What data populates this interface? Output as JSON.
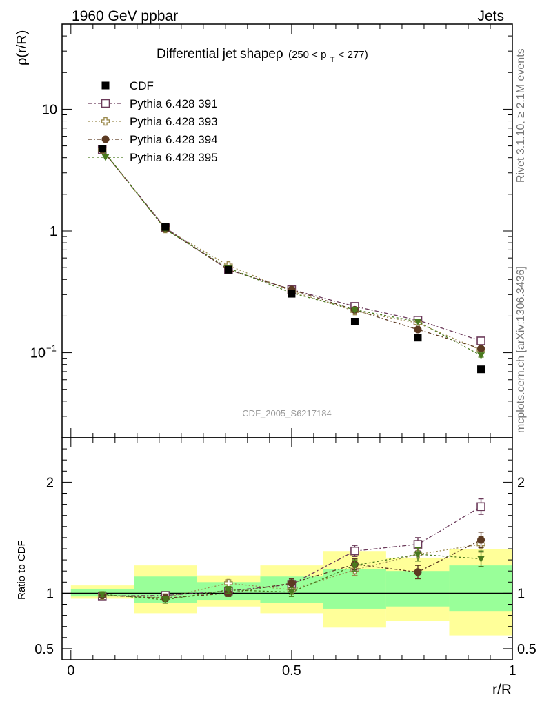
{
  "header": {
    "left": "1960 GeV ppbar",
    "right": "Jets"
  },
  "side": {
    "rivet": "Rivet 3.1.10, ≥ 2.1M events",
    "mcplots": "mcplots.cern.ch [arXiv:1306.3436]"
  },
  "chart_data": [
    {
      "type": "scatter",
      "title_main": "Differential jet shapeρ",
      "title_sub": "(250 < p",
      "title_sub_idx": "T",
      "title_sub_end": " < 277)",
      "ylabel": "ρ(r/R)",
      "yscale": "log",
      "ylim": [
        0.02,
        50
      ],
      "xlim": [
        -0.02,
        1.0
      ],
      "yticks": [
        {
          "v": 10,
          "label": "10"
        },
        {
          "v": 1,
          "label": "1"
        },
        {
          "v": 0.1,
          "label": "10",
          "sup": "−1"
        }
      ],
      "watermark": "CDF_2005_S6217184",
      "legend_position": "top-left",
      "x": [
        0.071,
        0.214,
        0.357,
        0.5,
        0.643,
        0.786,
        0.929
      ],
      "series": [
        {
          "name": "CDF",
          "marker": "square-filled",
          "color": "#000000",
          "values": [
            4.75,
            1.08,
            0.48,
            0.305,
            0.18,
            0.133,
            0.073
          ],
          "err": [
            0.1,
            0.02,
            0.01,
            0.006,
            0.004,
            0.003,
            0.002
          ]
        },
        {
          "name": "Pythia 6.428 391",
          "marker": "square-open",
          "color": "#6b3a5a",
          "dash": "6,3,2,3",
          "values": [
            4.65,
            1.06,
            0.48,
            0.33,
            0.24,
            0.185,
            0.125
          ],
          "err": [
            0.08,
            0.02,
            0.01,
            0.006,
            0.005,
            0.004,
            0.003
          ]
        },
        {
          "name": "Pythia 6.428 393",
          "marker": "cross-open",
          "color": "#9b8a4e",
          "dash": "2,3",
          "values": [
            4.65,
            1.04,
            0.52,
            0.32,
            0.22,
            0.175,
            0.105
          ],
          "err": [
            0.08,
            0.02,
            0.01,
            0.006,
            0.005,
            0.004,
            0.003
          ]
        },
        {
          "name": "Pythia 6.428 394",
          "marker": "circle-filled",
          "color": "#5c3a22",
          "dash": "5,3,2,3",
          "values": [
            4.65,
            1.04,
            0.48,
            0.33,
            0.225,
            0.155,
            0.108
          ],
          "err": [
            0.08,
            0.02,
            0.01,
            0.006,
            0.005,
            0.004,
            0.003
          ]
        },
        {
          "name": "Pythia 6.428 395",
          "marker": "triangle-down-filled",
          "color": "#4a7a1e",
          "dash": "3,3",
          "values": [
            4.7,
            1.03,
            0.495,
            0.31,
            0.225,
            0.18,
            0.095
          ],
          "err": [
            0.08,
            0.02,
            0.01,
            0.006,
            0.005,
            0.004,
            0.003
          ]
        }
      ]
    },
    {
      "type": "scatter",
      "ylabel": "Ratio to CDF",
      "xlabel": "r/R",
      "ylim": [
        0.4,
        2.4
      ],
      "xlim": [
        -0.02,
        1.0
      ],
      "yticks": [
        {
          "v": 0.5,
          "label": "0.5"
        },
        {
          "v": 1,
          "label": "1"
        },
        {
          "v": 2,
          "label": "2"
        }
      ],
      "xticks": [
        {
          "v": 0,
          "label": "0"
        },
        {
          "v": 0.5,
          "label": "0.5"
        },
        {
          "v": 1,
          "label": "1"
        }
      ],
      "bands": {
        "edges": [
          0.0,
          0.143,
          0.286,
          0.429,
          0.571,
          0.714,
          0.857,
          1.0
        ],
        "yellow_color": "#ffff99",
        "green_color": "#99ff99",
        "yellow": [
          [
            0.95,
            1.07
          ],
          [
            0.82,
            1.25
          ],
          [
            0.88,
            1.16
          ],
          [
            0.82,
            1.25
          ],
          [
            0.69,
            1.38
          ],
          [
            0.75,
            1.32
          ],
          [
            0.62,
            1.4
          ]
        ],
        "green": [
          [
            0.97,
            1.04
          ],
          [
            0.91,
            1.15
          ],
          [
            0.94,
            1.1
          ],
          [
            0.91,
            1.15
          ],
          [
            0.86,
            1.22
          ],
          [
            0.88,
            1.2
          ],
          [
            0.84,
            1.25
          ]
        ]
      },
      "x": [
        0.071,
        0.214,
        0.357,
        0.5,
        0.643,
        0.786,
        0.929
      ],
      "series": [
        {
          "name": "Pythia 6.428 391",
          "marker": "square-open",
          "color": "#6b3a5a",
          "dash": "6,3,2,3",
          "values": [
            0.975,
            0.98,
            1.02,
            1.08,
            1.38,
            1.44,
            1.78
          ],
          "err": [
            0.02,
            0.03,
            0.03,
            0.04,
            0.05,
            0.06,
            0.07
          ]
        },
        {
          "name": "Pythia 6.428 393",
          "marker": "cross-open",
          "color": "#9b8a4e",
          "dash": "2,3",
          "values": [
            0.98,
            0.96,
            1.09,
            1.03,
            1.21,
            1.35,
            1.44
          ],
          "err": [
            0.02,
            0.03,
            0.03,
            0.04,
            0.05,
            0.06,
            0.07
          ]
        },
        {
          "name": "Pythia 6.428 394",
          "marker": "circle-filled",
          "color": "#5c3a22",
          "dash": "5,3,2,3",
          "values": [
            0.98,
            0.955,
            1.0,
            1.09,
            1.26,
            1.19,
            1.48
          ],
          "err": [
            0.02,
            0.03,
            0.03,
            0.04,
            0.05,
            0.06,
            0.07
          ]
        },
        {
          "name": "Pythia 6.428 395",
          "marker": "triangle-down-filled",
          "color": "#4a7a1e",
          "dash": "3,3",
          "values": [
            0.99,
            0.94,
            1.03,
            1.01,
            1.25,
            1.35,
            1.31
          ],
          "err": [
            0.02,
            0.03,
            0.03,
            0.04,
            0.05,
            0.06,
            0.07
          ]
        }
      ]
    }
  ]
}
